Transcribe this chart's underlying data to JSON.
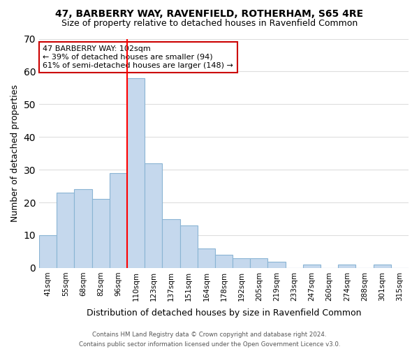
{
  "title_line1": "47, BARBERRY WAY, RAVENFIELD, ROTHERHAM, S65 4RE",
  "title_line2": "Size of property relative to detached houses in Ravenfield Common",
  "xlabel": "Distribution of detached houses by size in Ravenfield Common",
  "ylabel": "Number of detached properties",
  "footer_line1": "Contains HM Land Registry data © Crown copyright and database right 2024.",
  "footer_line2": "Contains public sector information licensed under the Open Government Licence v3.0.",
  "bin_labels": [
    "41sqm",
    "55sqm",
    "68sqm",
    "82sqm",
    "96sqm",
    "110sqm",
    "123sqm",
    "137sqm",
    "151sqm",
    "164sqm",
    "178sqm",
    "192sqm",
    "205sqm",
    "219sqm",
    "233sqm",
    "247sqm",
    "260sqm",
    "274sqm",
    "288sqm",
    "301sqm",
    "315sqm"
  ],
  "bar_heights": [
    10,
    23,
    24,
    21,
    29,
    58,
    32,
    15,
    13,
    6,
    4,
    3,
    3,
    2,
    0,
    1,
    0,
    1,
    0,
    1,
    0
  ],
  "bar_color": "#c5d8ed",
  "bar_edge_color": "#8ab4d4",
  "vline_x_index": 5,
  "vline_color": "red",
  "ylim": [
    0,
    70
  ],
  "yticks": [
    0,
    10,
    20,
    30,
    40,
    50,
    60,
    70
  ],
  "annotation_title": "47 BARBERRY WAY: 102sqm",
  "annotation_line2": "← 39% of detached houses are smaller (94)",
  "annotation_line3": "61% of semi-detached houses are larger (148) →",
  "annotation_box_color": "#ffffff",
  "annotation_border_color": "#cc0000",
  "grid_color": "#dddddd"
}
